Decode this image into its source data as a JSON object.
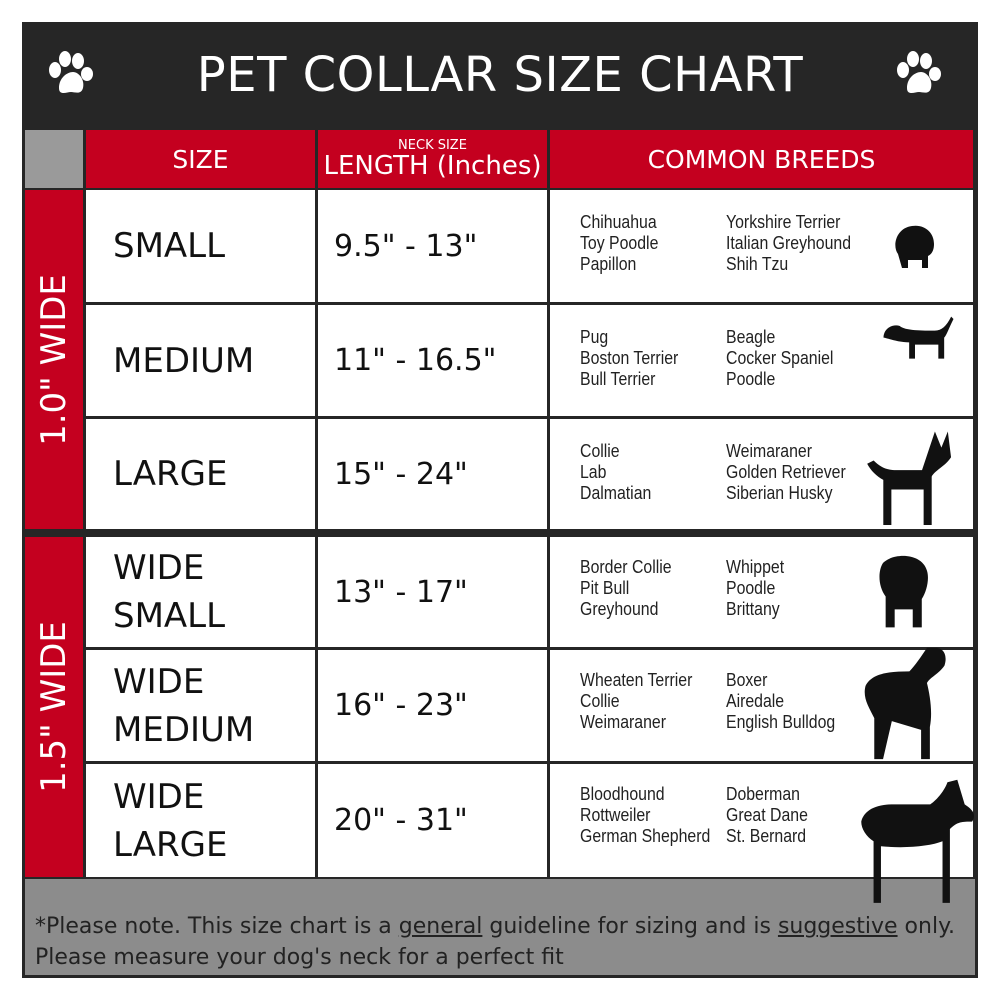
{
  "title": "PET COLLAR SIZE CHART",
  "header": {
    "size": "SIZE",
    "length_small": "NECK SIZE",
    "length": "LENGTH (Inches)",
    "breeds": "COMMON BREEDS"
  },
  "groups": [
    {
      "label": "1.0\" WIDE"
    },
    {
      "label": "1.5\" WIDE"
    }
  ],
  "rows": [
    {
      "size": "SMALL",
      "length": "9.5\" - 13\"",
      "breeds_a": [
        "Chihuahua",
        "Toy Poodle",
        "Papillon"
      ],
      "breeds_b": [
        "Yorkshire Terrier",
        "Italian Greyhound",
        "Shih Tzu"
      ]
    },
    {
      "size": "MEDIUM",
      "length": "11\" - 16.5\"",
      "breeds_a": [
        "Pug",
        "Boston Terrier",
        "Bull Terrier"
      ],
      "breeds_b": [
        "Beagle",
        "Cocker Spaniel",
        "Poodle"
      ]
    },
    {
      "size": "LARGE",
      "length": "15\" - 24\"",
      "breeds_a": [
        "Collie",
        "Lab",
        "Dalmatian"
      ],
      "breeds_b": [
        "Weimaraner",
        "Golden Retriever",
        "Siberian Husky"
      ]
    },
    {
      "size": "WIDE SMALL",
      "length": "13\" - 17\"",
      "breeds_a": [
        "Border Collie",
        "Pit Bull",
        "Greyhound"
      ],
      "breeds_b": [
        "Whippet",
        "Poodle",
        "Brittany"
      ]
    },
    {
      "size": "WIDE MEDIUM",
      "length": "16\" - 23\"",
      "breeds_a": [
        "Wheaten Terrier",
        "Collie",
        "Weimaraner"
      ],
      "breeds_b": [
        "Boxer",
        "Airedale",
        "English Bulldog"
      ]
    },
    {
      "size": "WIDE LARGE",
      "length": "20\" - 31\"",
      "breeds_a": [
        "Bloodhound",
        "Rottweiler",
        "German Shepherd"
      ],
      "breeds_b": [
        "Doberman",
        "Great Dane",
        "St. Bernard"
      ]
    }
  ],
  "footer": {
    "pre": "*Please note. This size chart is a ",
    "general": "general",
    "mid": " guideline for sizing and is ",
    "suggestive": "suggestive",
    "post": " only.",
    "line2": "Please measure your dog's neck for a perfect fit"
  },
  "colors": {
    "red": "#c4001f",
    "dark": "#262626",
    "gray": "#8c8c8c"
  }
}
